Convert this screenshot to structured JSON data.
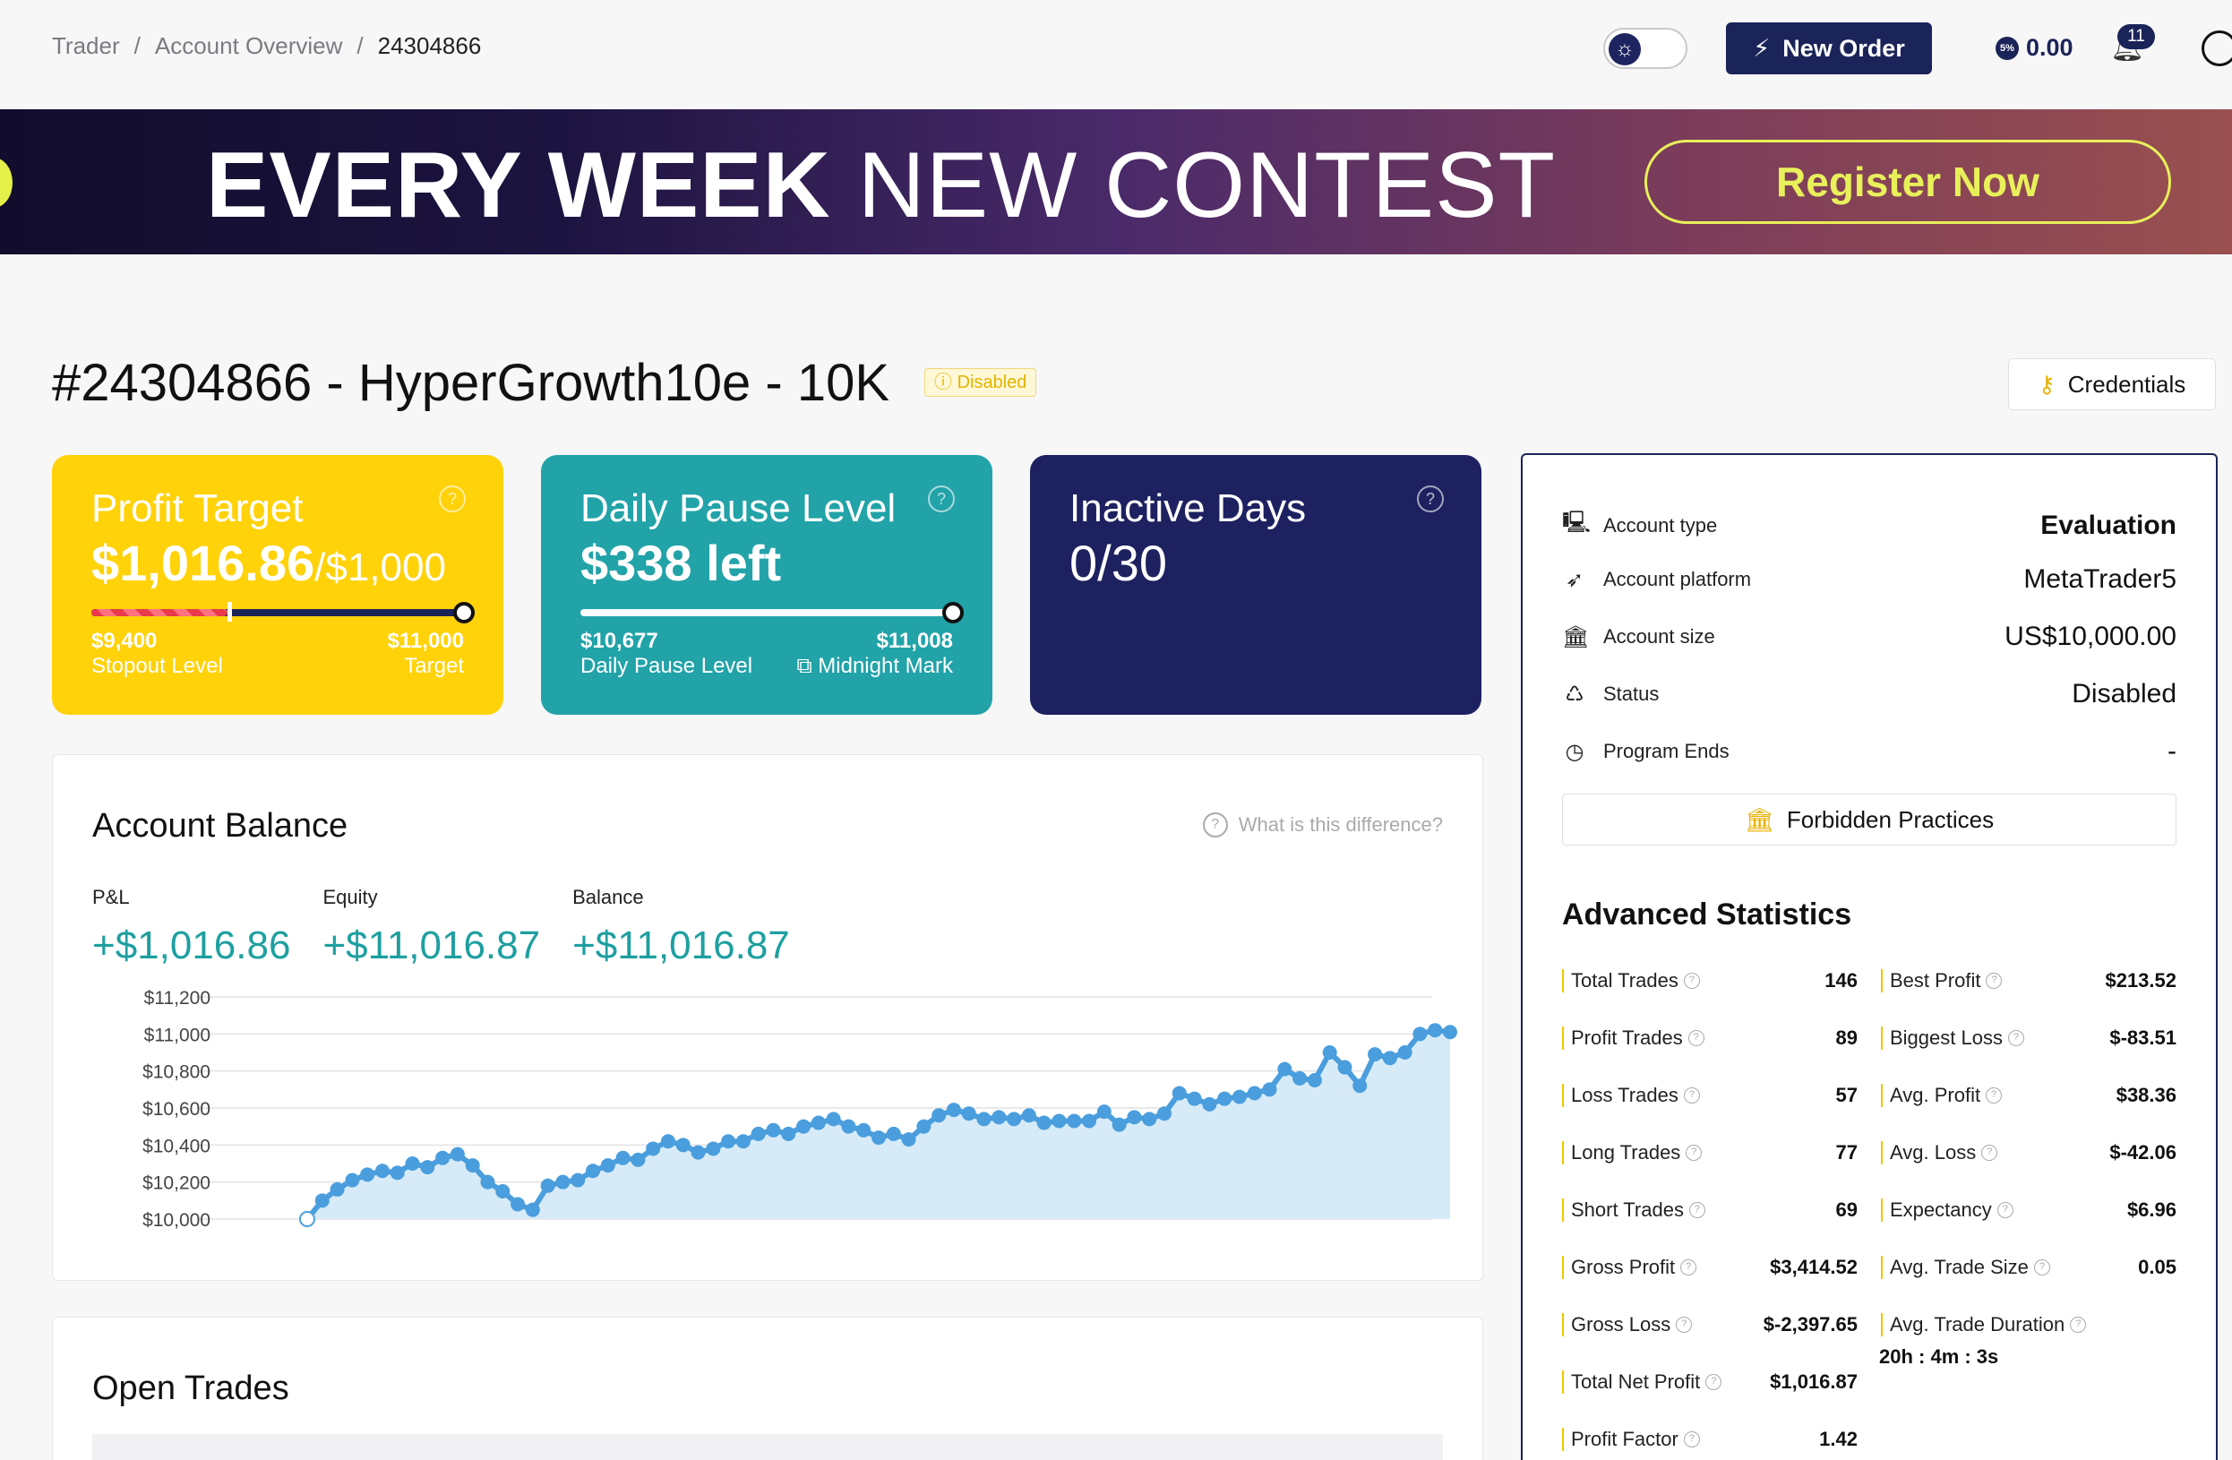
{
  "breadcrumb": {
    "items": [
      "Trader",
      "Account Overview"
    ],
    "current": "24304866",
    "separator": "/"
  },
  "header": {
    "new_order_label": "New Order",
    "wallet_value": "0.00",
    "wallet_coin": "5%",
    "notifications_count": "11"
  },
  "banner": {
    "text_bold": "EVERY WEEK",
    "text_regular": "NEW CONTEST",
    "register_label": "Register Now"
  },
  "account": {
    "title": "#24304866 - HyperGrowth10e - 10K",
    "status_pill": "Disabled",
    "credentials_label": "Credentials"
  },
  "cards": {
    "profit_target": {
      "title": "Profit Target",
      "value": "$1,016.86",
      "of": "/$1,000",
      "progress": 0.5,
      "left_value": "$9,400",
      "left_label": "Stopout Level",
      "right_value": "$11,000",
      "right_label": "Target",
      "help": "?"
    },
    "daily_pause": {
      "title": "Daily Pause Level",
      "value": "$338 left",
      "progress": 1.0,
      "left_value": "$10,677",
      "left_label": "Daily Pause Level",
      "right_value": "$11,008",
      "right_label": "Midnight Mark",
      "help": "?"
    },
    "inactive_days": {
      "title": "Inactive Days",
      "value": "0/30",
      "help": "?"
    }
  },
  "balance": {
    "title": "Account Balance",
    "help_text": "What is this difference?",
    "metrics": [
      {
        "label": "P&L",
        "value": "+$1,016.86"
      },
      {
        "label": "Equity",
        "value": "+$11,016.87"
      },
      {
        "label": "Balance",
        "value": "+$11,016.87"
      }
    ]
  },
  "chart_data": {
    "type": "area",
    "title": "",
    "xlabel": "",
    "ylabel": "",
    "ylim": [
      10000,
      11200
    ],
    "yticks": [
      "$10,000",
      "$10,200",
      "$10,400",
      "$10,600",
      "$10,800",
      "$11,000",
      "$11,200"
    ],
    "ytick_values": [
      10000,
      10200,
      10400,
      10600,
      10800,
      11000,
      11200
    ],
    "grid": true,
    "color": "#4a9edd",
    "series": [
      {
        "values": [
          10000,
          10100,
          10160,
          10210,
          10240,
          10260,
          10250,
          10300,
          10280,
          10330,
          10350,
          10290,
          10200,
          10150,
          10080,
          10050,
          10180,
          10200,
          10210,
          10260,
          10290,
          10330,
          10320,
          10380,
          10420,
          10400,
          10360,
          10380,
          10420,
          10420,
          10460,
          10480,
          10460,
          10500,
          10520,
          10540,
          10500,
          10480,
          10440,
          10460,
          10430,
          10500,
          10560,
          10590,
          10570,
          10540,
          10550,
          10540,
          10560,
          10520,
          10530,
          10530,
          10530,
          10580,
          10510,
          10550,
          10540,
          10570,
          10680,
          10650,
          10620,
          10650,
          10660,
          10680,
          10700,
          10810,
          10760,
          10750,
          10900,
          10820,
          10720,
          10890,
          10870,
          10900,
          11000,
          11020,
          11010
        ]
      }
    ]
  },
  "open_trades": {
    "title": "Open Trades"
  },
  "account_info": [
    {
      "key": "Account type",
      "value": "Evaluation",
      "icon": "monitor-icon",
      "strong": true
    },
    {
      "key": "Account platform",
      "value": "MetaTrader5",
      "icon": "rocket-icon",
      "strong": false
    },
    {
      "key": "Account size",
      "value": "US$10,000.00",
      "icon": "bank-icon",
      "strong": false
    },
    {
      "key": "Status",
      "value": "Disabled",
      "icon": "recycle-icon",
      "strong": false
    },
    {
      "key": "Program Ends",
      "value": "-",
      "icon": "clock-icon",
      "strong": false
    }
  ],
  "forbidden_label": "Forbidden Practices",
  "advanced": {
    "title": "Advanced Statistics",
    "left": [
      {
        "key": "Total Trades",
        "value": "146"
      },
      {
        "key": "Profit Trades",
        "value": "89"
      },
      {
        "key": "Loss Trades",
        "value": "57"
      },
      {
        "key": "Long Trades",
        "value": "77"
      },
      {
        "key": "Short Trades",
        "value": "69"
      },
      {
        "key": "Gross Profit",
        "value": "$3,414.52"
      },
      {
        "key": "Gross Loss",
        "value": "$-2,397.65"
      },
      {
        "key": "Total Net Profit",
        "value": "$1,016.87"
      },
      {
        "key": "Profit Factor",
        "value": "1.42"
      }
    ],
    "right": [
      {
        "key": "Best Profit",
        "value": "$213.52"
      },
      {
        "key": "Biggest Loss",
        "value": "$-83.51"
      },
      {
        "key": "Avg. Profit",
        "value": "$38.36"
      },
      {
        "key": "Avg. Loss",
        "value": "$-42.06"
      },
      {
        "key": "Expectancy",
        "value": "$6.96"
      },
      {
        "key": "Avg. Trade Size",
        "value": "0.05"
      },
      {
        "key": "Avg. Trade Duration",
        "value": "20h : 4m : 3s"
      }
    ]
  }
}
